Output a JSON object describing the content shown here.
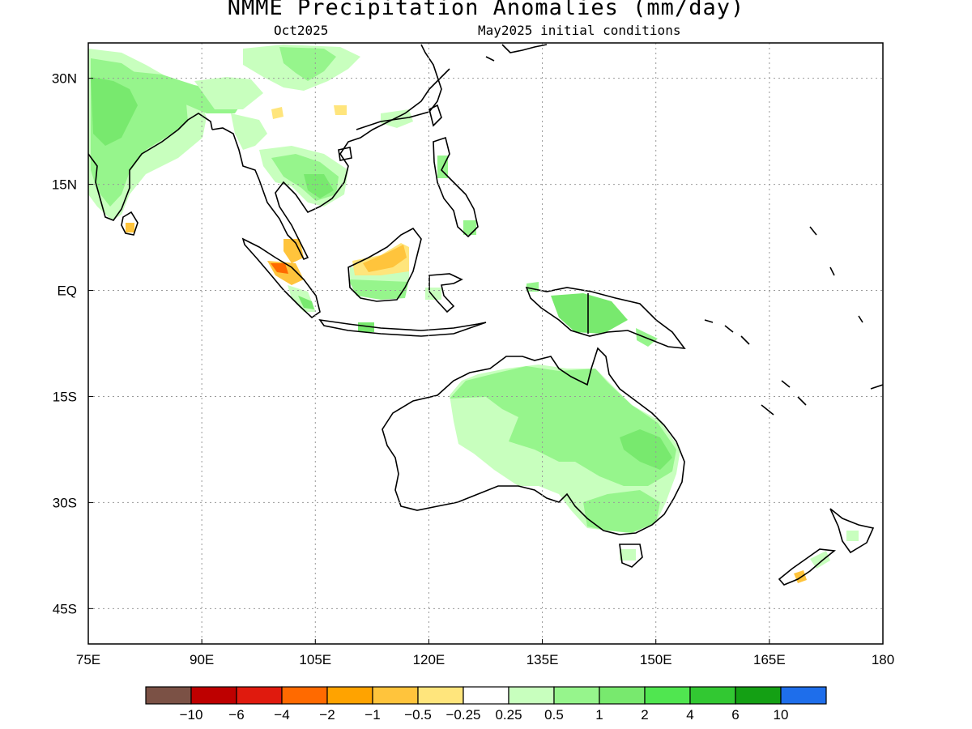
{
  "header": {
    "title": "NMME Precipitation Anomalies (mm/day)",
    "target_month": "Oct2025",
    "initial_conditions": "May2025 initial conditions"
  },
  "map": {
    "lon_range": [
      75,
      180
    ],
    "lat_range": [
      -50,
      35
    ],
    "grid": true,
    "lat_ticks": [
      {
        "value": 30,
        "label": "30N"
      },
      {
        "value": 15,
        "label": "15N"
      },
      {
        "value": 0,
        "label": "EQ"
      },
      {
        "value": -15,
        "label": "15S"
      },
      {
        "value": -30,
        "label": "30S"
      },
      {
        "value": -45,
        "label": "45S"
      }
    ],
    "lon_ticks": [
      {
        "value": 75,
        "label": "75E"
      },
      {
        "value": 90,
        "label": "90E"
      },
      {
        "value": 105,
        "label": "105E"
      },
      {
        "value": 120,
        "label": "120E"
      },
      {
        "value": 135,
        "label": "135E"
      },
      {
        "value": 150,
        "label": "150E"
      },
      {
        "value": 165,
        "label": "165E"
      },
      {
        "value": 180,
        "label": "180"
      }
    ]
  },
  "legend": {
    "colors": [
      "#7b5145",
      "#be0000",
      "#e01a0e",
      "#ff6a00",
      "#ffa300",
      "#ffc43c",
      "#ffe57c",
      "#ffffff",
      "#c8ffbe",
      "#96f58c",
      "#78e96e",
      "#50e650",
      "#32c832",
      "#14a014",
      "#1e6eeb"
    ],
    "labels": [
      "−10",
      "−6",
      "−4",
      "−2",
      "−1",
      "−0.5",
      "−0.25",
      "0.25",
      "0.5",
      "1",
      "2",
      "4",
      "6",
      "10"
    ]
  },
  "chart_data": {
    "type": "heatmap",
    "variable": "Precipitation Anomalies (mm/day)",
    "regions": [
      {
        "name": "India",
        "anomaly": "0.5 to 1"
      },
      {
        "name": "Tibetan Plateau / China",
        "anomaly": "0.5 to 1"
      },
      {
        "name": "Indochina",
        "anomaly": "0.5 to 2"
      },
      {
        "name": "Sumatra",
        "anomaly": "-2 to -0.25"
      },
      {
        "name": "Borneo",
        "anomaly": "-1 to -0.25"
      },
      {
        "name": "New Guinea",
        "anomaly": "1 to 2"
      },
      {
        "name": "Northern & Eastern Australia",
        "anomaly": "0.5 to 2"
      },
      {
        "name": "Southwest Australia interior",
        "anomaly": "0.25 to 0.5"
      },
      {
        "name": "New Zealand South Island",
        "anomaly": "-0.5 to -0.25"
      }
    ]
  }
}
